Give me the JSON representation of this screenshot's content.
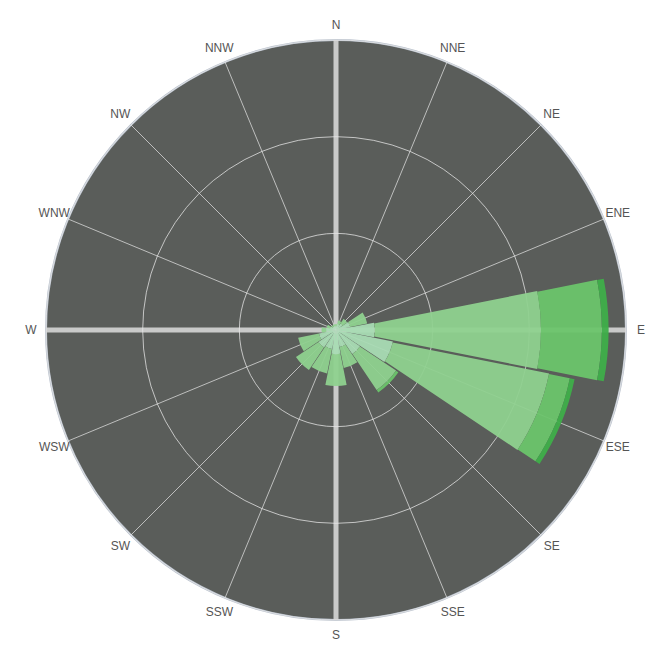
{
  "chart_data": {
    "type": "wind_rose",
    "categories": [
      "N",
      "NNE",
      "NE",
      "ENE",
      "E",
      "ESE",
      "SE",
      "SSE",
      "S",
      "SSW",
      "SW",
      "WSW",
      "W",
      "WNW",
      "NW",
      "NNW"
    ],
    "series": [
      {
        "color": "#a9dbb4",
        "values": [
          0.4,
          0.6,
          0.8,
          1.5,
          4,
          6,
          3,
          1.8,
          2.5,
          2,
          2.2,
          1.8,
          1,
          0.6,
          0.4,
          0.4
        ]
      },
      {
        "color": "#8fd18f",
        "values": [
          0.2,
          0.4,
          0.6,
          1.8,
          17.2,
          16.5,
          4.5,
          2.2,
          3.3,
          2.6,
          2.8,
          2.2,
          0.5,
          0.4,
          0.2,
          0.2
        ]
      },
      {
        "color": "#6cc46c",
        "values": [
          0,
          0,
          0,
          0,
          6.3,
          2.2,
          0.3,
          0,
          0,
          0,
          0,
          0,
          0,
          0,
          0,
          0
        ]
      },
      {
        "color": "#3fae4a",
        "values": [
          0,
          0,
          0,
          0,
          0.7,
          0.5,
          0,
          0,
          0,
          0,
          0,
          0,
          0,
          0,
          0,
          0
        ]
      }
    ],
    "ylim": [
      0,
      30
    ],
    "yticks": [
      10,
      20,
      30
    ],
    "grid": true,
    "stacked": true,
    "tick_labels": "x"
  }
}
